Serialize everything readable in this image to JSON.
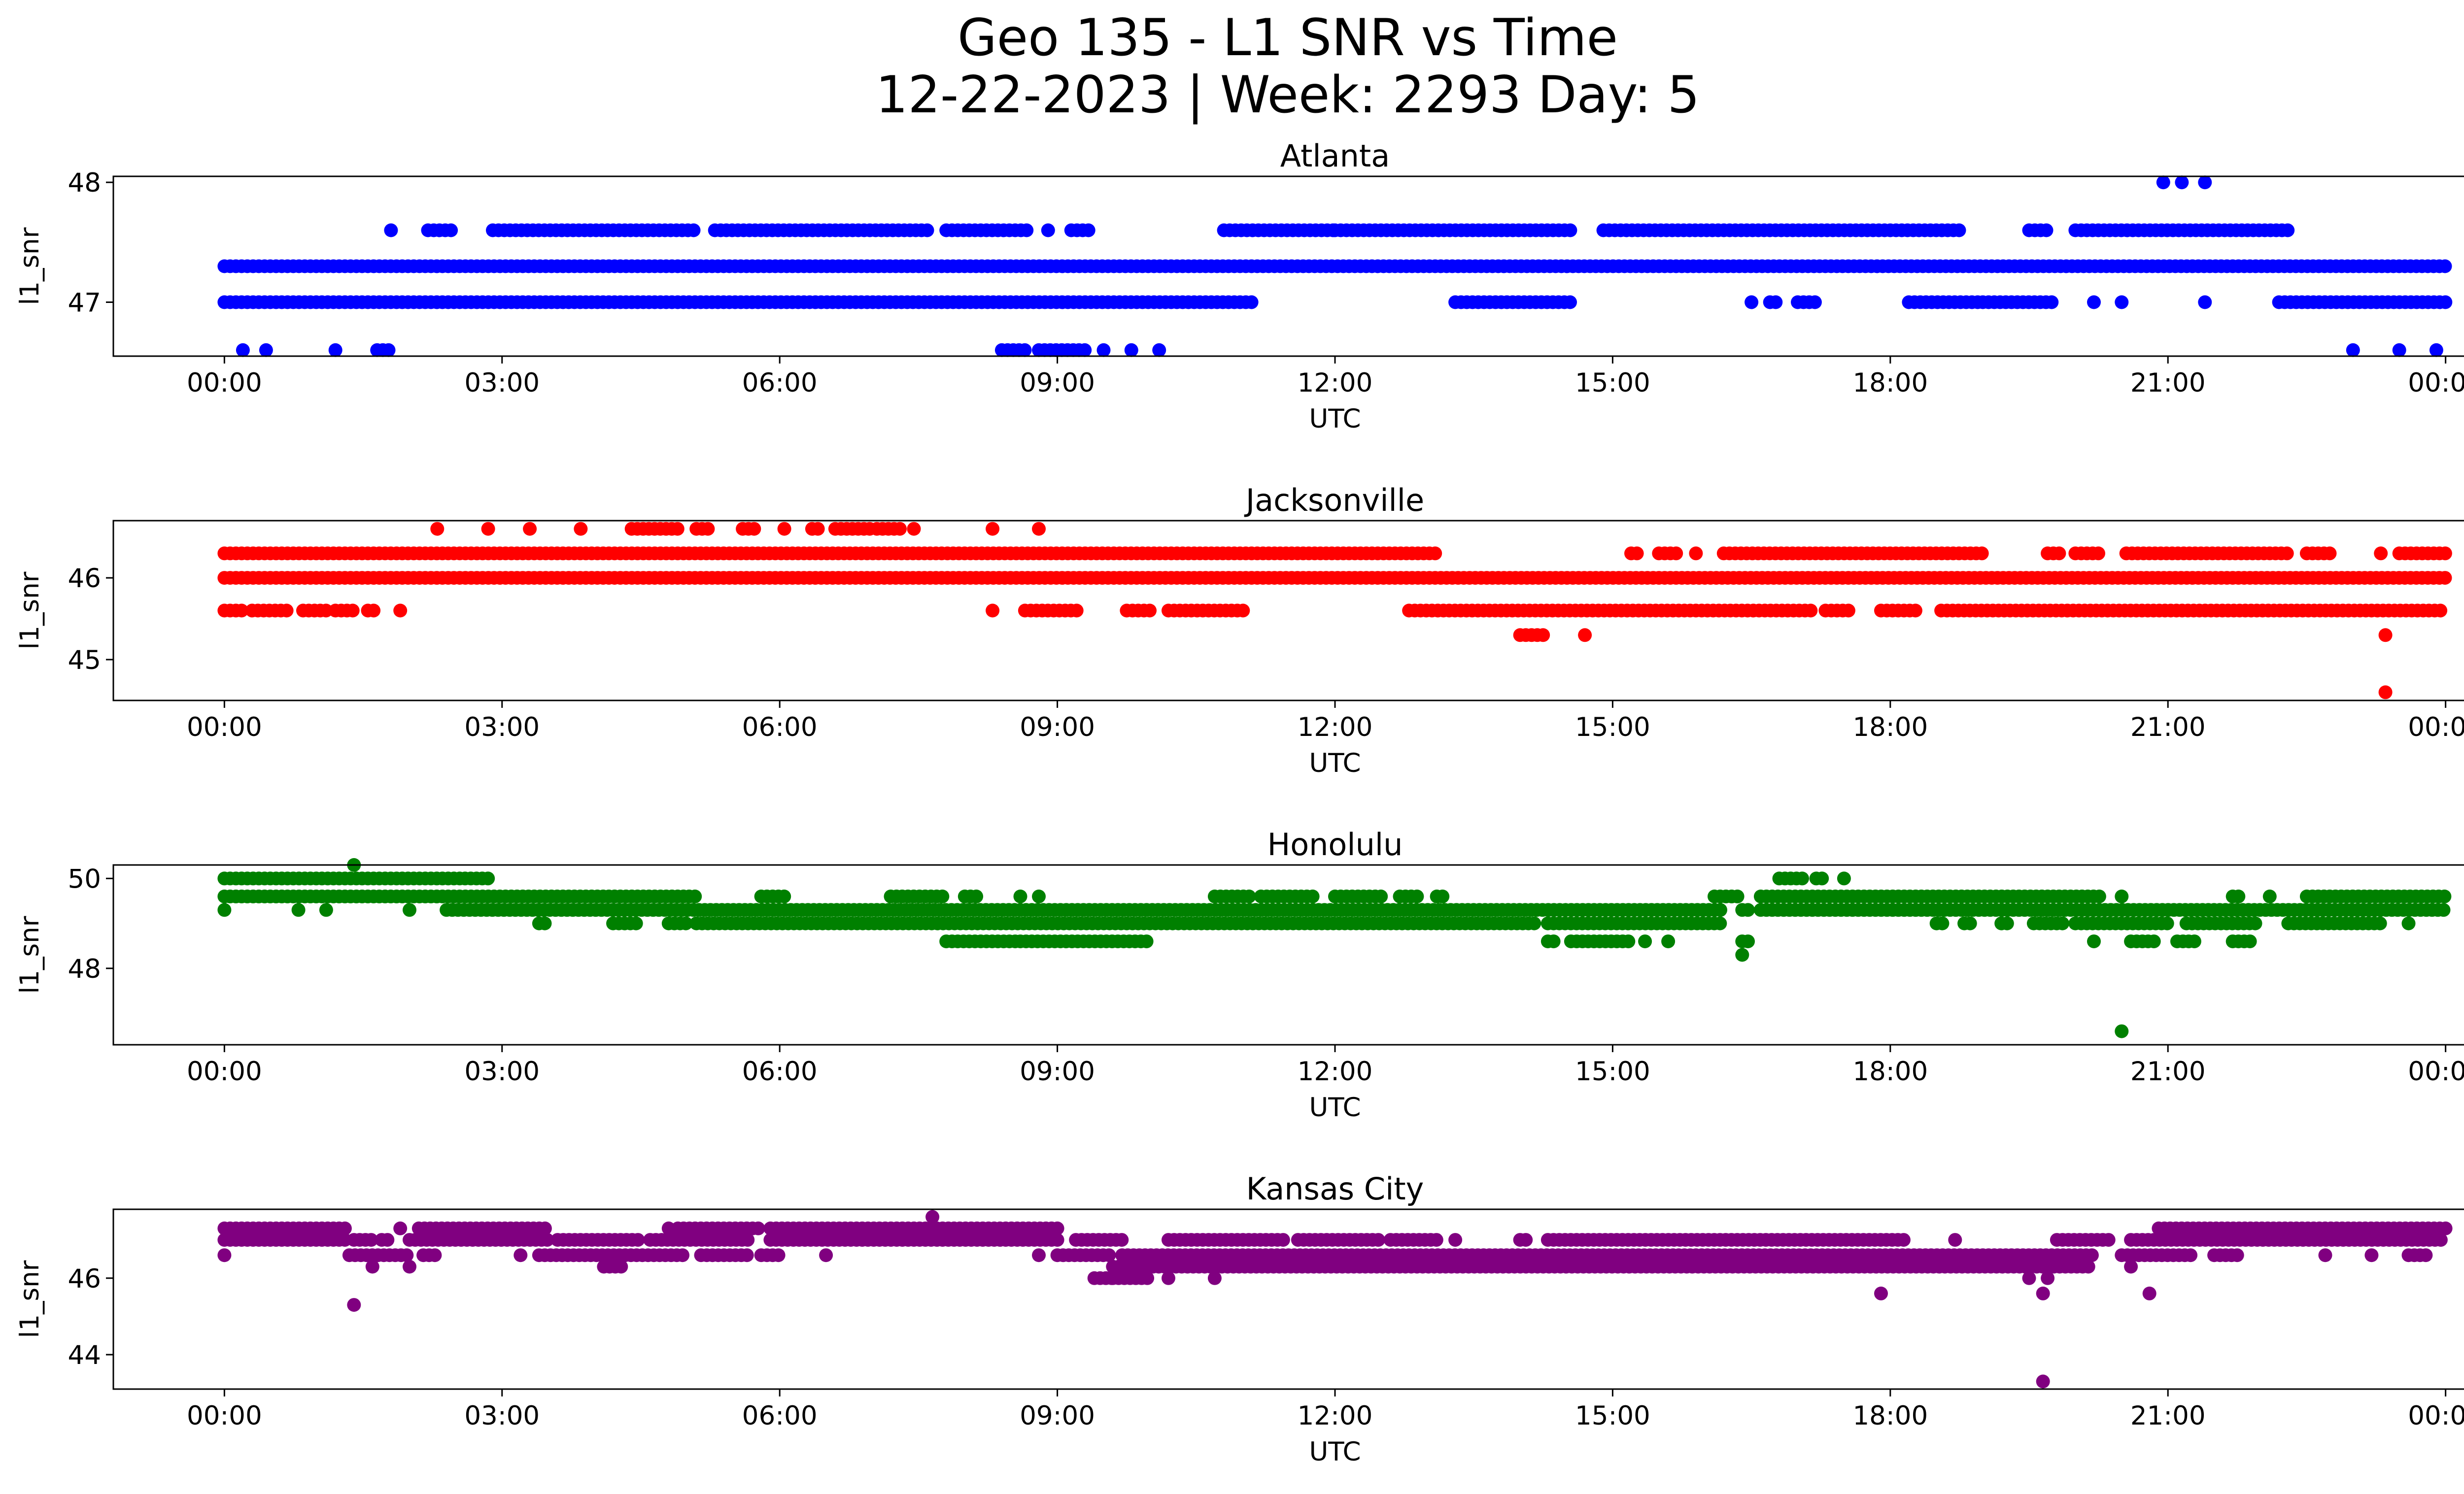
{
  "figure": {
    "title_line1": "Geo 135 - L1 SNR vs Time",
    "title_line2": "12-22-2023 | Week: 2293 Day: 5"
  },
  "chart_data": [
    {
      "type": "scatter",
      "title": "Atlanta",
      "xlabel": "UTC",
      "ylabel": "l1_snr",
      "color": "#0000ff",
      "xlim": [
        "2023-12-21T22:48",
        "2023-12-23T01:12"
      ],
      "ylim": [
        46.55,
        48.05
      ],
      "yticks": [
        47,
        48
      ],
      "xticks": [
        "00:00",
        "03:00",
        "06:00",
        "09:00",
        "12:00",
        "15:00",
        "18:00",
        "21:00",
        "00:00"
      ],
      "levels": [
        {
          "y": 47.3,
          "segments": [
            [
              0.0,
              24.0
            ]
          ]
        },
        {
          "y": 47.0,
          "segments": [
            [
              0.0,
              11.15
            ],
            [
              13.3,
              14.6
            ],
            [
              16.5,
              16.55
            ],
            [
              16.7,
              16.8
            ],
            [
              17.0,
              17.2
            ],
            [
              18.2,
              19.0
            ],
            [
              19.0,
              19.8
            ],
            [
              20.2,
              20.25
            ],
            [
              20.5,
              20.55
            ],
            [
              21.4,
              21.45
            ],
            [
              22.2,
              24.0
            ]
          ]
        },
        {
          "y": 47.6,
          "segments": [
            [
              1.8,
              1.85
            ],
            [
              2.2,
              2.45
            ],
            [
              2.9,
              5.1
            ],
            [
              5.3,
              7.6
            ],
            [
              7.8,
              8.7
            ],
            [
              8.9,
              8.95
            ],
            [
              9.15,
              9.35
            ],
            [
              10.8,
              12.0
            ],
            [
              12.0,
              14.6
            ],
            [
              14.9,
              18.8
            ],
            [
              19.5,
              19.7
            ],
            [
              20.0,
              22.3
            ]
          ]
        },
        {
          "y": 48.0,
          "segments": [
            [
              20.95,
              21.0
            ],
            [
              21.15,
              21.2
            ],
            [
              21.4,
              21.45
            ]
          ]
        },
        {
          "y": 46.6,
          "segments": [
            [
              0.2,
              0.25
            ],
            [
              0.45,
              0.5
            ],
            [
              1.2,
              1.25
            ],
            [
              1.65,
              1.8
            ],
            [
              8.4,
              8.65
            ],
            [
              8.8,
              9.3
            ],
            [
              9.5,
              9.55
            ],
            [
              9.8,
              9.85
            ],
            [
              10.1,
              10.15
            ],
            [
              23.0,
              23.05
            ],
            [
              23.5,
              23.55
            ],
            [
              23.9,
              23.95
            ]
          ]
        }
      ]
    },
    {
      "type": "scatter",
      "title": "Jacksonville",
      "xlabel": "UTC",
      "ylabel": "l1_snr",
      "color": "#ff0000",
      "xlim": [
        "2023-12-21T22:48",
        "2023-12-23T01:12"
      ],
      "ylim": [
        44.5,
        46.7
      ],
      "yticks": [
        45,
        46
      ],
      "xticks": [
        "00:00",
        "03:00",
        "06:00",
        "09:00",
        "12:00",
        "15:00",
        "18:00",
        "21:00",
        "00:00"
      ],
      "levels": [
        {
          "y": 46.0,
          "segments": [
            [
              0.0,
              24.0
            ]
          ]
        },
        {
          "y": 46.3,
          "segments": [
            [
              0.0,
              13.1
            ],
            [
              15.2,
              15.3
            ],
            [
              15.5,
              15.7
            ],
            [
              15.9,
              15.95
            ],
            [
              16.2,
              19.0
            ],
            [
              19.7,
              19.85
            ],
            [
              20.0,
              20.3
            ],
            [
              20.55,
              22.3
            ],
            [
              22.5,
              22.8
            ],
            [
              23.3,
              23.35
            ],
            [
              23.5,
              24.0
            ]
          ]
        },
        {
          "y": 45.6,
          "segments": [
            [
              0.0,
              0.2
            ],
            [
              0.3,
              0.7
            ],
            [
              0.85,
              1.1
            ],
            [
              1.2,
              1.4
            ],
            [
              1.55,
              1.65
            ],
            [
              1.9,
              1.95
            ],
            [
              8.3,
              8.35
            ],
            [
              8.65,
              9.25
            ],
            [
              9.75,
              10.0
            ],
            [
              10.2,
              11.05
            ],
            [
              12.8,
              17.2
            ],
            [
              17.3,
              17.6
            ],
            [
              17.9,
              18.3
            ],
            [
              18.55,
              24.0
            ]
          ]
        },
        {
          "y": 46.6,
          "segments": [
            [
              2.3,
              2.35
            ],
            [
              2.85,
              2.9
            ],
            [
              3.3,
              3.35
            ],
            [
              3.85,
              3.9
            ],
            [
              4.4,
              4.9
            ],
            [
              5.1,
              5.25
            ],
            [
              5.6,
              5.75
            ],
            [
              6.05,
              6.1
            ],
            [
              6.35,
              6.45
            ],
            [
              6.6,
              7.0
            ],
            [
              7.05,
              7.35
            ],
            [
              7.45,
              7.5
            ],
            [
              8.3,
              8.35
            ],
            [
              8.8,
              8.85
            ]
          ]
        },
        {
          "y": 45.3,
          "segments": [
            [
              14.0,
              14.25
            ],
            [
              14.7,
              14.75
            ],
            [
              23.35,
              23.4
            ]
          ]
        },
        {
          "y": 44.6,
          "segments": [
            [
              23.35,
              23.4
            ]
          ]
        }
      ]
    },
    {
      "type": "scatter",
      "title": "Honolulu",
      "xlabel": "UTC",
      "ylabel": "l1_snr",
      "color": "#008000",
      "xlim": [
        "2023-12-21T22:48",
        "2023-12-23T01:12"
      ],
      "ylim": [
        46.3,
        50.3
      ],
      "yticks": [
        48,
        50
      ],
      "xticks": [
        "00:00",
        "03:00",
        "06:00",
        "09:00",
        "12:00",
        "15:00",
        "18:00",
        "21:00",
        "00:00"
      ],
      "levels": [
        {
          "y": 49.3,
          "segments": [
            [
              0.0,
              0.05
            ],
            [
              0.8,
              0.85
            ],
            [
              1.1,
              1.15
            ],
            [
              2.0,
              2.05
            ],
            [
              2.4,
              16.2
            ],
            [
              16.4,
              16.5
            ],
            [
              16.6,
              24.0
            ]
          ]
        },
        {
          "y": 49.0,
          "segments": [
            [
              3.4,
              3.5
            ],
            [
              4.2,
              4.5
            ],
            [
              4.8,
              5.0
            ],
            [
              5.1,
              14.2
            ],
            [
              14.3,
              16.2
            ],
            [
              18.5,
              18.6
            ],
            [
              18.8,
              18.9
            ],
            [
              19.2,
              19.3
            ],
            [
              19.55,
              19.9
            ],
            [
              20.0,
              21.0
            ],
            [
              21.2,
              22.0
            ],
            [
              22.3,
              23.3
            ],
            [
              23.6,
              23.65
            ]
          ]
        },
        {
          "y": 49.6,
          "segments": [
            [
              0.0,
              5.1
            ],
            [
              5.8,
              6.05
            ],
            [
              7.2,
              7.8
            ],
            [
              8.0,
              8.15
            ],
            [
              8.6,
              8.65
            ],
            [
              8.8,
              8.85
            ],
            [
              10.7,
              11.1
            ],
            [
              11.2,
              11.8
            ],
            [
              12.0,
              12.5
            ],
            [
              12.7,
              12.9
            ],
            [
              13.1,
              13.2
            ],
            [
              16.1,
              16.4
            ],
            [
              16.6,
              20.3
            ],
            [
              20.5,
              20.55
            ],
            [
              21.7,
              21.8
            ],
            [
              22.1,
              22.15
            ],
            [
              22.5,
              24.0
            ]
          ]
        },
        {
          "y": 50.0,
          "segments": [
            [
              0.0,
              2.6
            ],
            [
              2.6,
              2.9
            ],
            [
              16.8,
              17.1
            ],
            [
              17.2,
              17.3
            ],
            [
              17.5,
              17.55
            ]
          ]
        },
        {
          "y": 48.6,
          "segments": [
            [
              7.8,
              8.6
            ],
            [
              8.6,
              10.0
            ],
            [
              14.3,
              14.4
            ],
            [
              14.55,
              15.2
            ],
            [
              15.35,
              15.4
            ],
            [
              15.6,
              15.65
            ],
            [
              16.4,
              16.5
            ],
            [
              20.2,
              20.25
            ],
            [
              20.6,
              20.9
            ],
            [
              21.1,
              21.3
            ],
            [
              21.7,
              21.9
            ]
          ]
        },
        {
          "y": 50.3,
          "segments": [
            [
              1.4,
              1.45
            ]
          ]
        },
        {
          "y": 48.3,
          "segments": [
            [
              16.4,
              16.45
            ]
          ]
        },
        {
          "y": 46.6,
          "segments": [
            [
              20.5,
              20.55
            ]
          ]
        }
      ]
    },
    {
      "type": "scatter",
      "title": "Kansas City",
      "xlabel": "UTC",
      "ylabel": "l1_snr",
      "color": "#800080",
      "xlim": [
        "2023-12-21T22:48",
        "2023-12-23T01:12"
      ],
      "ylim": [
        43.1,
        47.8
      ],
      "yticks": [
        44,
        46
      ],
      "xticks": [
        "00:00",
        "03:00",
        "06:00",
        "09:00",
        "12:00",
        "15:00",
        "18:00",
        "21:00",
        "00:00"
      ],
      "levels": [
        {
          "y": 47.3,
          "segments": [
            [
              0.0,
              1.35
            ],
            [
              1.9,
              1.95
            ],
            [
              2.1,
              3.5
            ],
            [
              4.8,
              4.85
            ],
            [
              4.9,
              5.8
            ],
            [
              5.9,
              9.05
            ],
            [
              20.9,
              24.0
            ]
          ]
        },
        {
          "y": 47.0,
          "segments": [
            [
              0.0,
              1.35
            ],
            [
              1.4,
              1.6
            ],
            [
              1.7,
              1.8
            ],
            [
              2.0,
              3.5
            ],
            [
              3.6,
              4.5
            ],
            [
              4.6,
              5.7
            ],
            [
              5.9,
              9.05
            ],
            [
              9.2,
              9.7
            ],
            [
              10.2,
              11.5
            ],
            [
              11.6,
              12.5
            ],
            [
              12.6,
              13.1
            ],
            [
              13.3,
              13.35
            ],
            [
              14.0,
              14.1
            ],
            [
              14.3,
              18.2
            ],
            [
              18.7,
              18.75
            ],
            [
              19.8,
              20.4
            ],
            [
              20.6,
              24.0
            ]
          ]
        },
        {
          "y": 46.6,
          "segments": [
            [
              0.0,
              0.05
            ],
            [
              1.35,
              2.0
            ],
            [
              2.15,
              2.3
            ],
            [
              3.2,
              3.25
            ],
            [
              3.4,
              5.0
            ],
            [
              5.15,
              5.7
            ],
            [
              5.8,
              6.0
            ],
            [
              6.5,
              6.55
            ],
            [
              8.8,
              8.85
            ],
            [
              9.0,
              9.6
            ],
            [
              9.7,
              20.2
            ],
            [
              20.5,
              21.3
            ],
            [
              21.5,
              21.8
            ],
            [
              22.7,
              22.75
            ],
            [
              23.2,
              23.25
            ],
            [
              23.6,
              23.8
            ]
          ]
        },
        {
          "y": 46.3,
          "segments": [
            [
              1.6,
              1.65
            ],
            [
              2.0,
              2.05
            ],
            [
              4.1,
              4.3
            ],
            [
              9.6,
              20.2
            ],
            [
              20.6,
              20.65
            ]
          ]
        },
        {
          "y": 46.0,
          "segments": [
            [
              9.4,
              9.6
            ],
            [
              9.6,
              10.0
            ],
            [
              10.2,
              10.25
            ],
            [
              10.7,
              10.75
            ],
            [
              19.5,
              19.55
            ],
            [
              19.7,
              19.75
            ]
          ]
        },
        {
          "y": 47.6,
          "segments": [
            [
              7.65,
              7.7
            ]
          ]
        },
        {
          "y": 45.6,
          "segments": [
            [
              17.9,
              17.95
            ],
            [
              19.65,
              19.7
            ],
            [
              20.8,
              20.85
            ]
          ]
        },
        {
          "y": 45.3,
          "segments": [
            [
              1.4,
              1.45
            ]
          ]
        },
        {
          "y": 43.3,
          "segments": [
            [
              19.65,
              19.7
            ]
          ]
        }
      ]
    }
  ]
}
